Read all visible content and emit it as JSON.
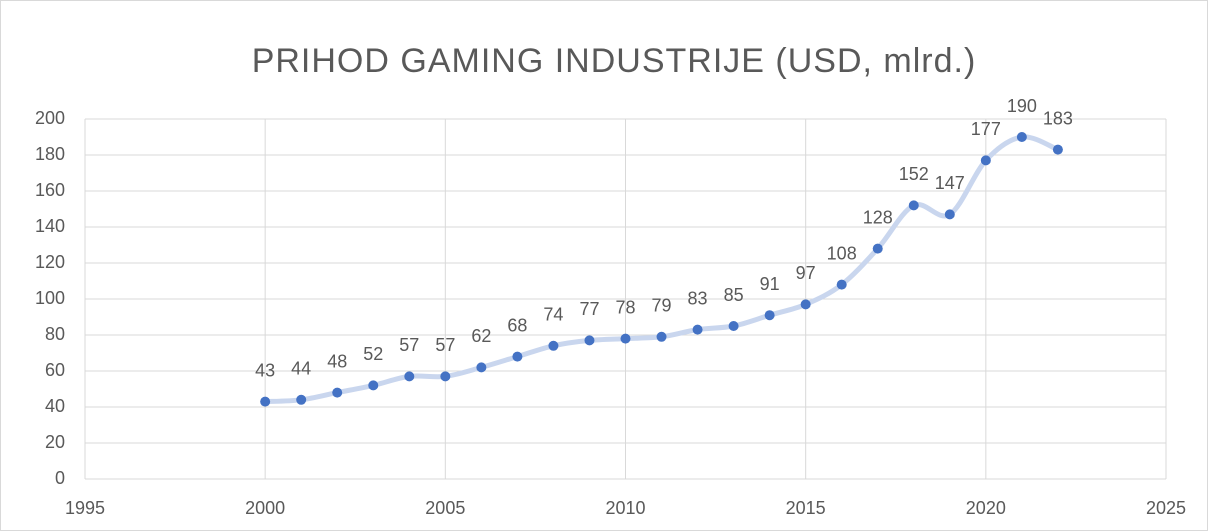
{
  "chart_data": {
    "type": "scatter",
    "title": "PRIHOD GAMING INDUSTRIJE (USD, mlrd.)",
    "x": [
      2000,
      2001,
      2002,
      2003,
      2004,
      2005,
      2006,
      2007,
      2008,
      2009,
      2010,
      2011,
      2012,
      2013,
      2014,
      2015,
      2016,
      2017,
      2018,
      2019,
      2020,
      2021,
      2022
    ],
    "values": [
      43,
      44,
      48,
      52,
      57,
      57,
      62,
      68,
      74,
      77,
      78,
      79,
      83,
      85,
      91,
      97,
      108,
      128,
      152,
      147,
      177,
      190,
      183
    ],
    "color": "#4472c4",
    "line_color": "#c9d6ee",
    "xlim": [
      1995,
      2025
    ],
    "xticks": [
      1995,
      2000,
      2005,
      2010,
      2015,
      2020,
      2025
    ],
    "ylim": [
      0,
      200
    ],
    "yticks": [
      0,
      20,
      40,
      60,
      80,
      100,
      120,
      140,
      160,
      180,
      200
    ],
    "grid": true
  }
}
